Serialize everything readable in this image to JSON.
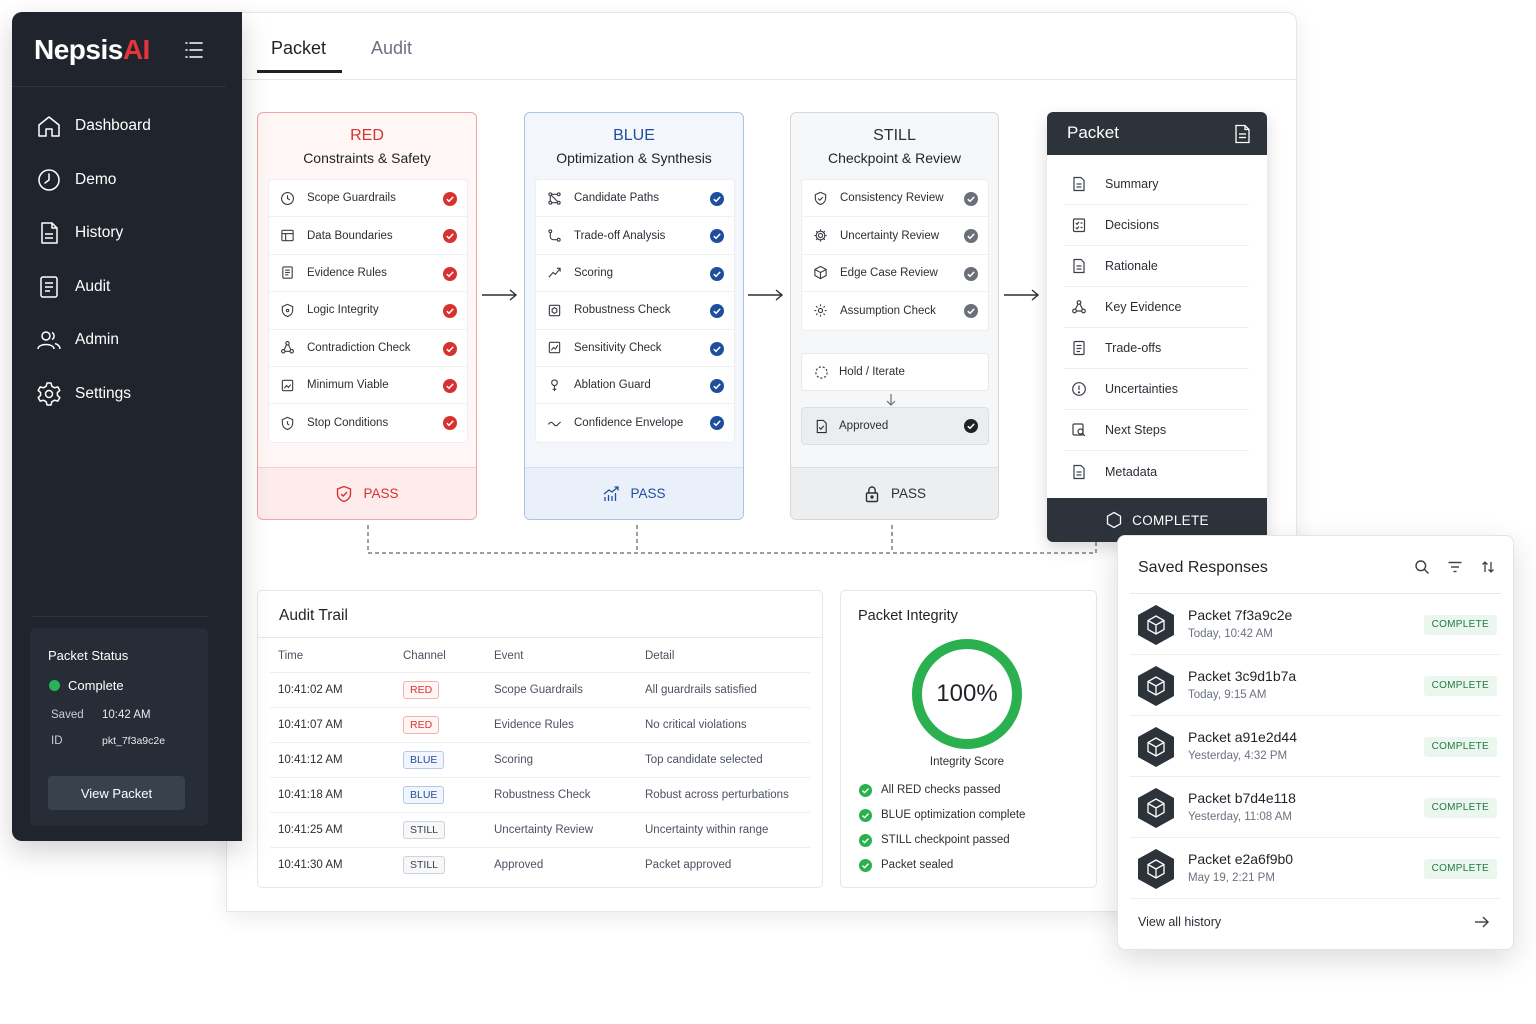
{
  "brand": {
    "name": "Nepsis",
    "accent": "AI",
    "accent_color": "#e5343a"
  },
  "sidebar": {
    "items": [
      {
        "label": "Dashboard",
        "icon": "home-icon"
      },
      {
        "label": "Demo",
        "icon": "clock-play-icon"
      },
      {
        "label": "History",
        "icon": "document-icon"
      },
      {
        "label": "Audit",
        "icon": "list-document-icon"
      },
      {
        "label": "Admin",
        "icon": "users-icon"
      },
      {
        "label": "Settings",
        "icon": "gear-icon"
      }
    ],
    "status": {
      "title": "Packet Status",
      "state": "Complete",
      "saved_key": "Saved",
      "saved_value": "10:42 AM",
      "id_key": "ID",
      "id_value": "pkt_7f3a9c2e",
      "button": "View Packet"
    }
  },
  "tabs": {
    "packet": "Packet",
    "audit": "Audit"
  },
  "channels": {
    "red": {
      "name": "RED",
      "subtitle": "Constraints & Safety",
      "color": "#d8322f",
      "items": [
        "Scope Guardrails",
        "Data Boundaries",
        "Evidence Rules",
        "Logic Integrity",
        "Contradiction Check",
        "Minimum Viable",
        "Stop Conditions"
      ],
      "result": "PASS"
    },
    "blue": {
      "name": "BLUE",
      "subtitle": "Optimization & Synthesis",
      "color": "#1f4e9c",
      "items": [
        "Candidate Paths",
        "Trade-off Analysis",
        "Scoring",
        "Robustness Check",
        "Sensitivity Check",
        "Ablation Guard",
        "Confidence Envelope"
      ],
      "result": "PASS"
    },
    "still": {
      "name": "STILL",
      "subtitle": "Checkpoint & Review",
      "items": [
        "Consistency Review",
        "Uncertainty Review",
        "Edge Case Review",
        "Assumption Check"
      ],
      "hold": "Hold / Iterate",
      "approved": "Approved",
      "result": "PASS"
    }
  },
  "packet": {
    "title": "Packet",
    "items": [
      "Summary",
      "Decisions",
      "Rationale",
      "Key Evidence",
      "Trade-offs",
      "Uncertainties",
      "Next Steps",
      "Metadata"
    ],
    "footer": "COMPLETE"
  },
  "audit": {
    "title": "Audit Trail",
    "columns": [
      "Time",
      "Channel",
      "Event",
      "Detail"
    ],
    "rows": [
      {
        "time": "10:41:02 AM",
        "channel": "RED",
        "event": "Scope Guardrails",
        "detail": "All guardrails satisfied"
      },
      {
        "time": "10:41:07 AM",
        "channel": "RED",
        "event": "Evidence Rules",
        "detail": "No critical violations"
      },
      {
        "time": "10:41:12 AM",
        "channel": "BLUE",
        "event": "Scoring",
        "detail": "Top candidate selected"
      },
      {
        "time": "10:41:18 AM",
        "channel": "BLUE",
        "event": "Robustness Check",
        "detail": "Robust across perturbations"
      },
      {
        "time": "10:41:25 AM",
        "channel": "STILL",
        "event": "Uncertainty Review",
        "detail": "Uncertainty within range"
      },
      {
        "time": "10:41:30 AM",
        "channel": "STILL",
        "event": "Approved",
        "detail": "Packet approved"
      }
    ]
  },
  "integrity": {
    "title": "Packet Integrity",
    "score": "100%",
    "score_fraction": 1.0,
    "label": "Integrity Score",
    "ring_color": "#2bb04f",
    "checks": [
      "All RED checks passed",
      "BLUE optimization complete",
      "STILL checkpoint passed",
      "Packet sealed"
    ]
  },
  "saved": {
    "title": "Saved Responses",
    "tools": [
      "search-icon",
      "filter-icon",
      "sort-icon"
    ],
    "items": [
      {
        "name": "Packet  7f3a9c2e",
        "time": "Today, 10:42 AM",
        "status": "COMPLETE"
      },
      {
        "name": "Packet  3c9d1b7a",
        "time": "Today, 9:15 AM",
        "status": "COMPLETE"
      },
      {
        "name": "Packet  a91e2d44",
        "time": "Yesterday, 4:32 PM",
        "status": "COMPLETE"
      },
      {
        "name": "Packet  b7d4e118",
        "time": "Yesterday, 11:08 AM",
        "status": "COMPLETE"
      },
      {
        "name": "Packet  e2a6f9b0",
        "time": "May 19, 2:21 PM",
        "status": "COMPLETE"
      }
    ],
    "view_all": "View all history"
  }
}
